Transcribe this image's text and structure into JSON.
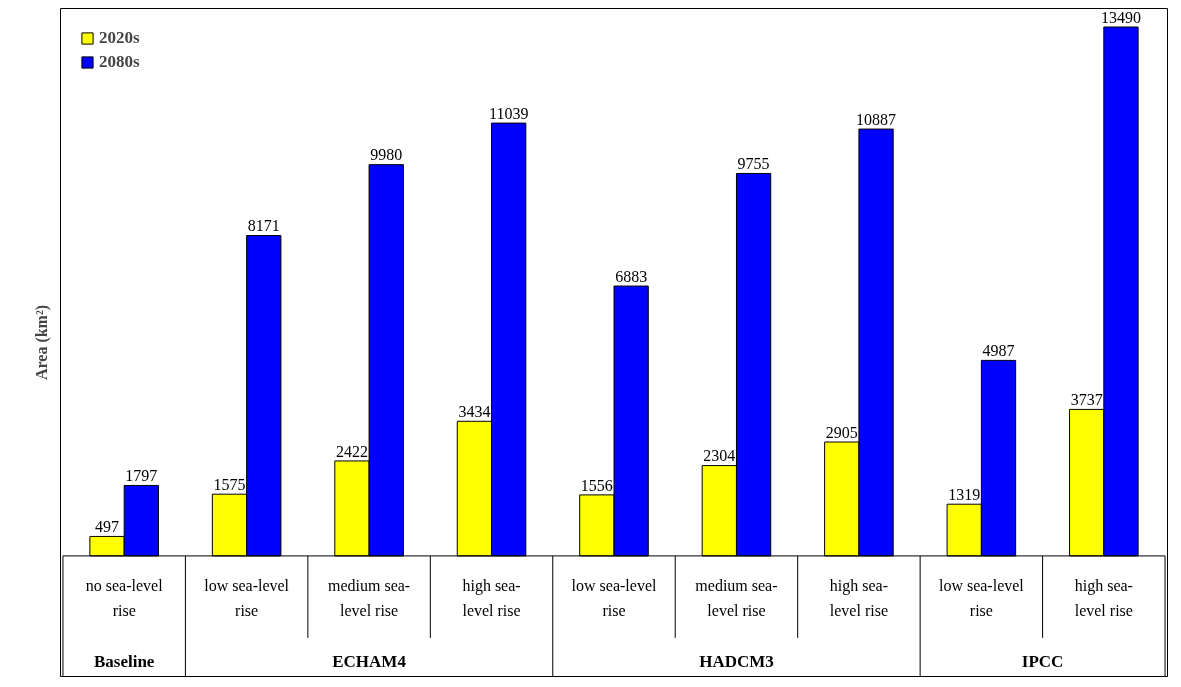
{
  "chart_data": {
    "type": "bar",
    "ylabel": "Area (km²)",
    "categories": [
      "no sea-level rise",
      "low sea-level rise",
      "medium sea-level rise",
      "high sea-level rise",
      "low sea-level rise",
      "medium sea-level rise",
      "high sea-level rise",
      "low sea-level rise",
      "high sea-level rise"
    ],
    "series": [
      {
        "name": "2020s",
        "color": "#ffff00",
        "values": [
          497,
          1575,
          2422,
          3434,
          1556,
          2304,
          2905,
          1319,
          3737
        ]
      },
      {
        "name": "2080s",
        "color": "#0000ff",
        "values": [
          1797,
          8171,
          9980,
          11039,
          6883,
          9755,
          10887,
          4987,
          13490
        ]
      }
    ],
    "annotations": [
      "Baseline",
      "ECHAM4",
      "HADCM3",
      "IPCC"
    ],
    "data_labels": true,
    "legend": "top left",
    "grid": false
  }
}
